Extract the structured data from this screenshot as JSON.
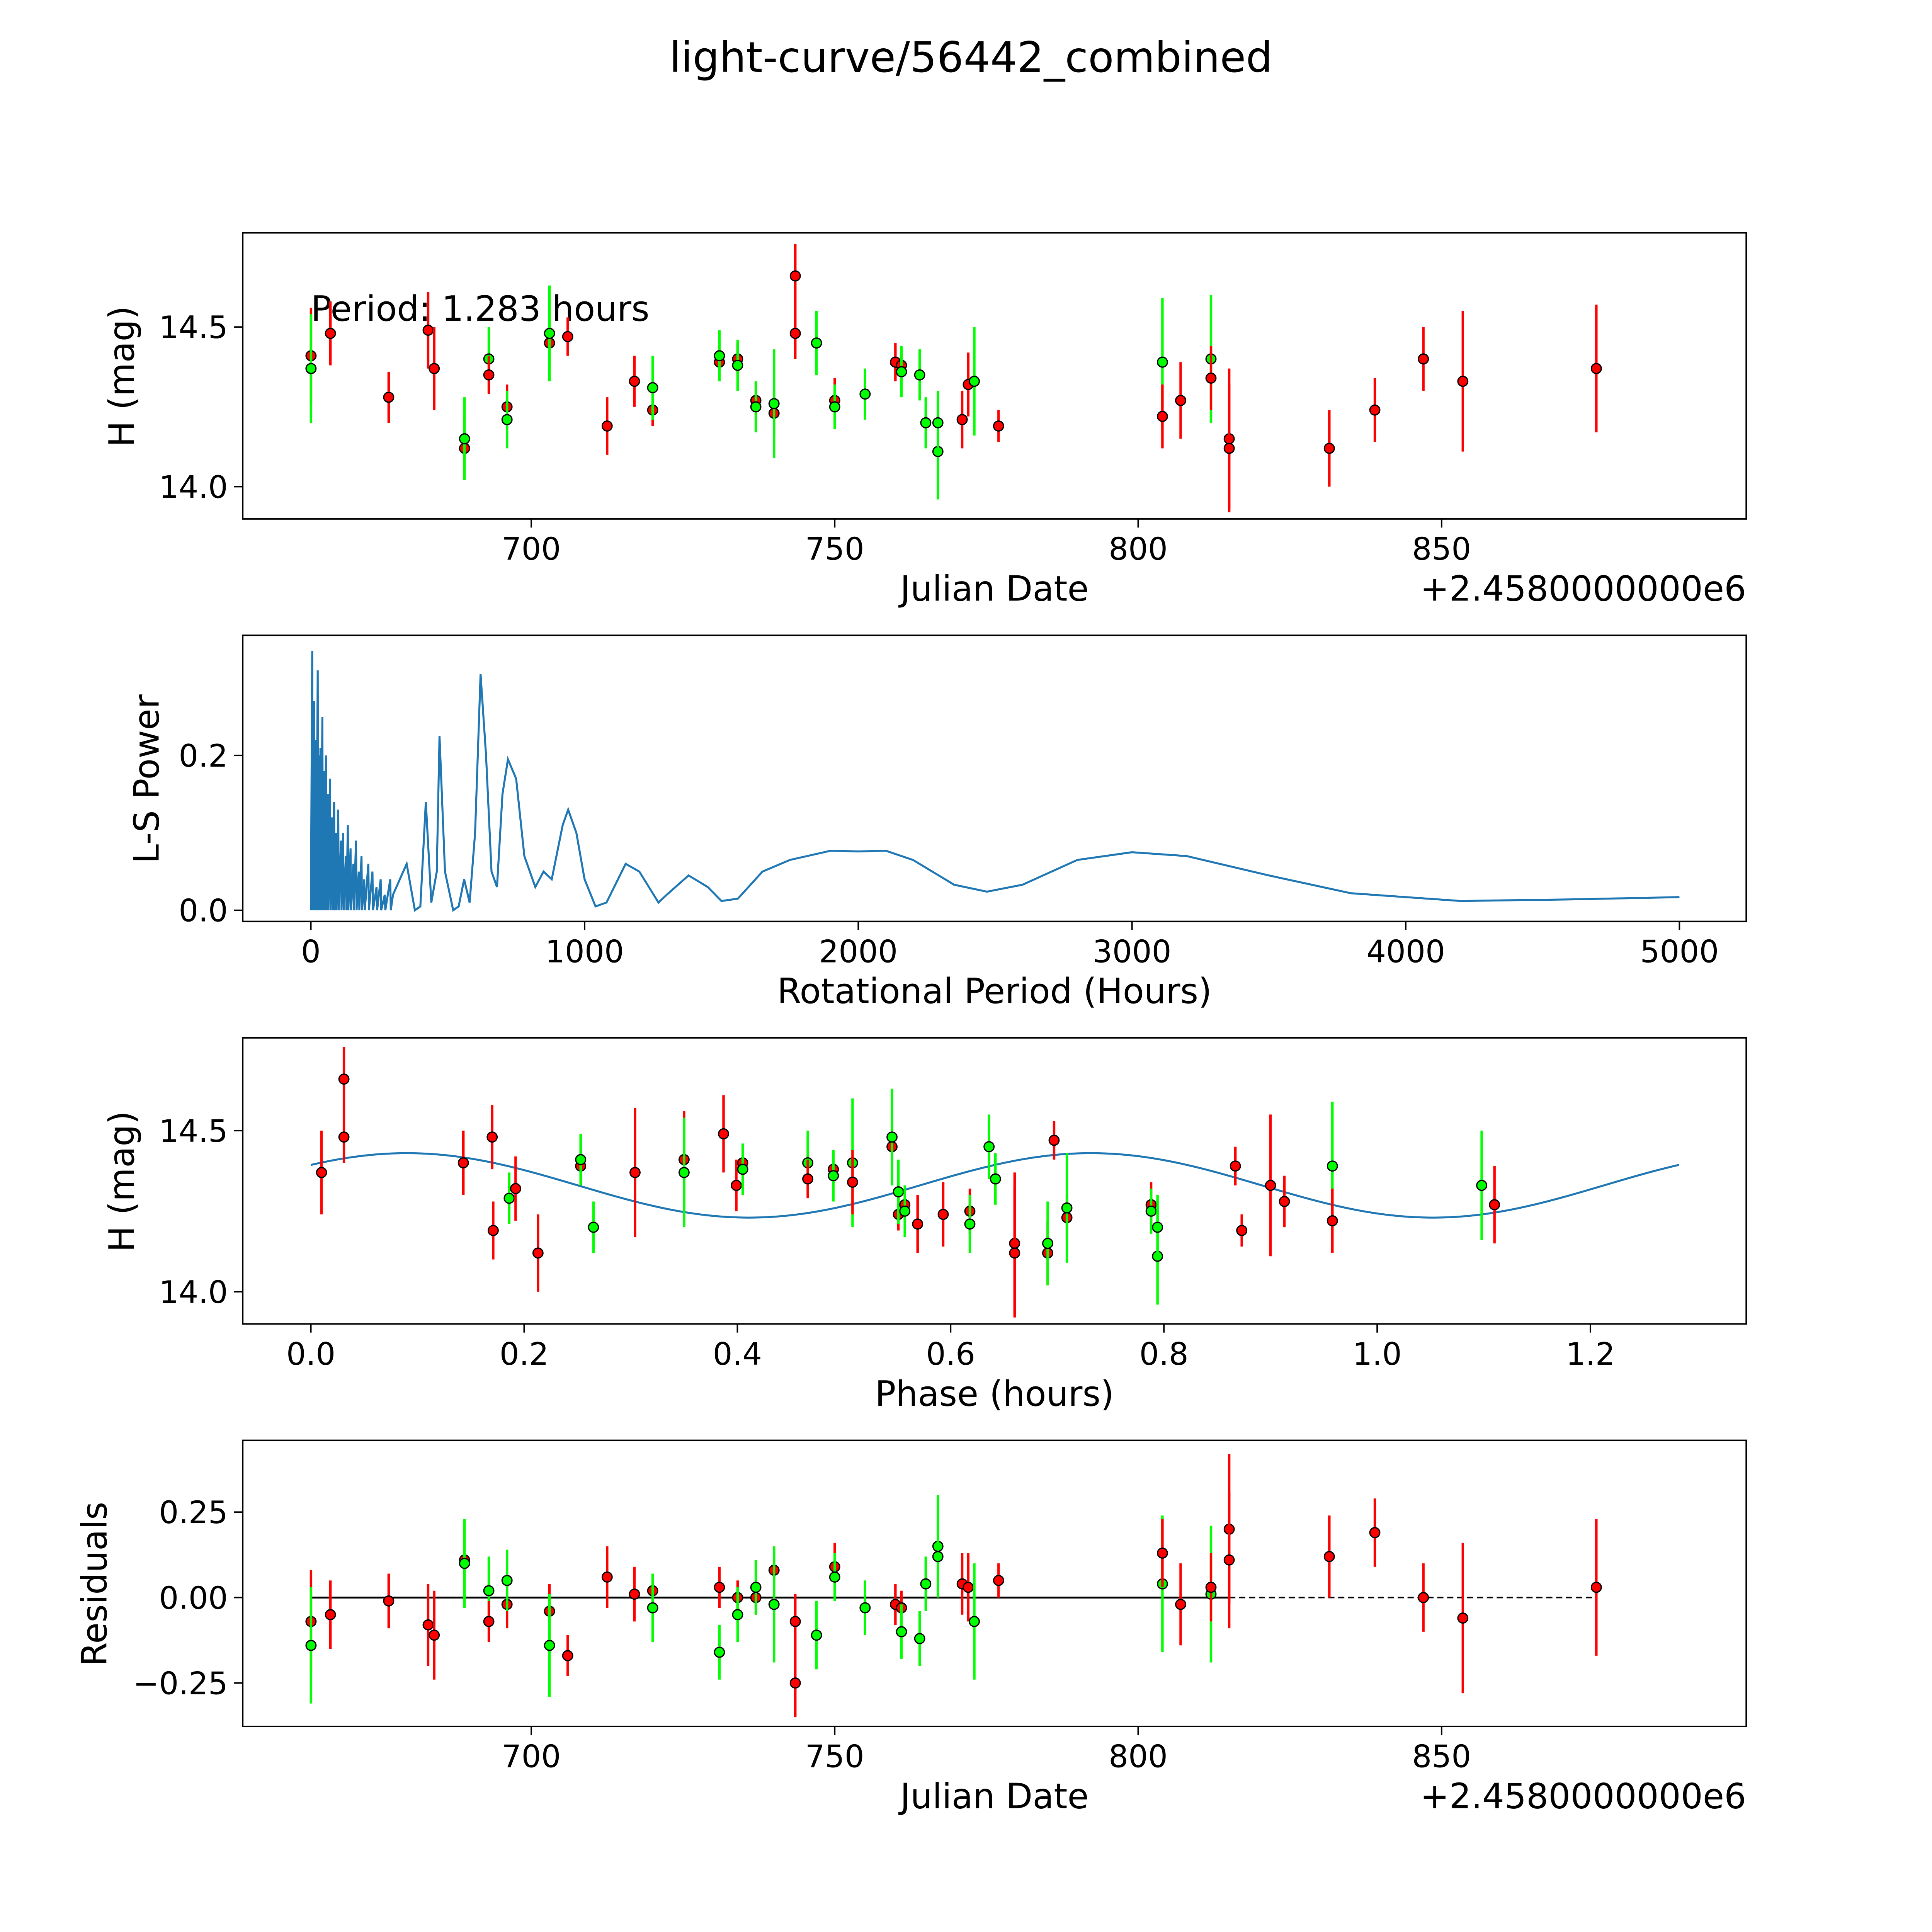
{
  "title": "light-curve/56442_combined",
  "colors": {
    "red_band": "#ff0000",
    "green_band": "#00ff00",
    "model": "#1f77b4",
    "axis": "#000000"
  },
  "chart_data": [
    {
      "type": "scatter",
      "id": "lightcurve",
      "xlabel": "Julian Date",
      "ylabel": "H (mag)",
      "offset_label": "+2.4580000000e6",
      "annotation": "Period: 1.283 hours",
      "xlim": [
        652.45,
        900.2
      ],
      "ylim": [
        13.899,
        14.795
      ],
      "xticks": [
        700,
        750,
        800,
        850
      ],
      "yticks": [
        {
          "v": 14.0,
          "label": "14.0"
        },
        {
          "v": 14.5,
          "label": "14.5"
        }
      ],
      "x": [
        663.7,
        663.7,
        666.9,
        676.5,
        683,
        684,
        689,
        689,
        693,
        693,
        696,
        696,
        703,
        703,
        706,
        712.5,
        717,
        720,
        720,
        731,
        731,
        734,
        734,
        737,
        737,
        740,
        740,
        743.5,
        743.5,
        747,
        750,
        750,
        755,
        760,
        761,
        761,
        764,
        765,
        767,
        767,
        771,
        772,
        773,
        777,
        804,
        804,
        807,
        812,
        812,
        815,
        815,
        831.5,
        839,
        847,
        853.5,
        875.5
      ],
      "y": [
        14.41,
        14.37,
        14.48,
        14.28,
        14.49,
        14.37,
        14.12,
        14.15,
        14.4,
        14.35,
        14.25,
        14.21,
        14.45,
        14.48,
        14.47,
        14.19,
        14.33,
        14.24,
        14.31,
        14.39,
        14.41,
        14.4,
        14.38,
        14.27,
        14.25,
        14.23,
        14.26,
        14.66,
        14.48,
        14.45,
        14.27,
        14.25,
        14.29,
        14.39,
        14.38,
        14.36,
        14.35,
        14.2,
        14.11,
        14.2,
        14.21,
        14.32,
        14.33,
        14.19,
        14.39,
        14.22,
        14.27,
        14.4,
        14.34,
        14.15,
        14.12,
        14.12,
        14.24,
        14.4,
        14.33,
        14.37
      ],
      "err": [
        0.15,
        0.17,
        0.1,
        0.08,
        0.12,
        0.13,
        0.1,
        0.13,
        0.1,
        0.06,
        0.07,
        0.09,
        0.08,
        0.15,
        0.06,
        0.09,
        0.08,
        0.05,
        0.1,
        0.06,
        0.08,
        0.05,
        0.08,
        0.05,
        0.08,
        0.07,
        0.17,
        0.1,
        0.08,
        0.1,
        0.07,
        0.07,
        0.08,
        0.06,
        0.05,
        0.08,
        0.08,
        0.08,
        0.15,
        0.1,
        0.09,
        0.1,
        0.17,
        0.05,
        0.2,
        0.1,
        0.12,
        0.2,
        0.1,
        0.22,
        0.2,
        0.12,
        0.1,
        0.1,
        0.22,
        0.2
      ],
      "band": [
        "r",
        "g",
        "r",
        "r",
        "r",
        "r",
        "r",
        "g",
        "g",
        "r",
        "r",
        "g",
        "r",
        "g",
        "r",
        "r",
        "r",
        "r",
        "g",
        "r",
        "g",
        "r",
        "g",
        "r",
        "g",
        "r",
        "g",
        "r",
        "r",
        "g",
        "r",
        "g",
        "g",
        "r",
        "r",
        "g",
        "g",
        "g",
        "g",
        "g",
        "r",
        "r",
        "g",
        "r",
        "g",
        "r",
        "r",
        "g",
        "r",
        "r",
        "r",
        "r",
        "r",
        "r",
        "r",
        "r"
      ]
    },
    {
      "type": "line",
      "id": "periodogram",
      "xlabel": "Rotational Period (Hours)",
      "ylabel": "L-S Power",
      "xlim": [
        -248.9,
        5244
      ],
      "ylim": [
        -0.0144,
        0.3552
      ],
      "xticks": [
        0,
        1000,
        2000,
        3000,
        4000,
        5000
      ],
      "yticks": [
        {
          "v": 0.0,
          "label": "0.0"
        },
        {
          "v": 0.2,
          "label": "0.2"
        }
      ],
      "spikes": [
        [
          5,
          0.335
        ],
        [
          8,
          0.25
        ],
        [
          12,
          0.27
        ],
        [
          18,
          0.22
        ],
        [
          25,
          0.31
        ],
        [
          30,
          0.2
        ],
        [
          35,
          0.21
        ],
        [
          42,
          0.25
        ],
        [
          48,
          0.18
        ],
        [
          55,
          0.2
        ],
        [
          62,
          0.15
        ],
        [
          70,
          0.17
        ],
        [
          78,
          0.12
        ],
        [
          85,
          0.14
        ],
        [
          92,
          0.1
        ],
        [
          100,
          0.13
        ],
        [
          110,
          0.09
        ],
        [
          118,
          0.1
        ],
        [
          128,
          0.07
        ],
        [
          135,
          0.11
        ],
        [
          145,
          0.08
        ],
        [
          155,
          0.06
        ],
        [
          165,
          0.09
        ],
        [
          175,
          0.05
        ],
        [
          185,
          0.07
        ],
        [
          195,
          0.04
        ],
        [
          210,
          0.06
        ],
        [
          225,
          0.05
        ],
        [
          240,
          0.03
        ],
        [
          255,
          0.04
        ],
        [
          270,
          0.02
        ],
        [
          290,
          0.04
        ]
      ],
      "curve": [
        [
          300,
          0.02
        ],
        [
          350,
          0.06
        ],
        [
          380,
          0.0
        ],
        [
          400,
          0.005
        ],
        [
          420,
          0.14
        ],
        [
          440,
          0.01
        ],
        [
          460,
          0.05
        ],
        [
          470,
          0.225
        ],
        [
          490,
          0.05
        ],
        [
          520,
          0.0
        ],
        [
          540,
          0.005
        ],
        [
          560,
          0.04
        ],
        [
          580,
          0.01
        ],
        [
          600,
          0.1
        ],
        [
          620,
          0.305
        ],
        [
          640,
          0.2
        ],
        [
          660,
          0.05
        ],
        [
          680,
          0.03
        ],
        [
          700,
          0.15
        ],
        [
          720,
          0.195
        ],
        [
          750,
          0.17
        ],
        [
          780,
          0.07
        ],
        [
          820,
          0.03
        ],
        [
          850,
          0.05
        ],
        [
          880,
          0.04
        ],
        [
          920,
          0.11
        ],
        [
          940,
          0.13
        ],
        [
          970,
          0.1
        ],
        [
          1000,
          0.04
        ],
        [
          1040,
          0.005
        ],
        [
          1080,
          0.01
        ],
        [
          1150,
          0.06
        ],
        [
          1200,
          0.05
        ],
        [
          1270,
          0.01
        ],
        [
          1300,
          0.02
        ],
        [
          1380,
          0.045
        ],
        [
          1450,
          0.03
        ],
        [
          1500,
          0.012
        ],
        [
          1560,
          0.015
        ],
        [
          1650,
          0.05
        ],
        [
          1750,
          0.065
        ],
        [
          1900,
          0.077
        ],
        [
          2000,
          0.076
        ],
        [
          2100,
          0.077
        ],
        [
          2200,
          0.065
        ],
        [
          2350,
          0.033
        ],
        [
          2470,
          0.024
        ],
        [
          2600,
          0.033
        ],
        [
          2800,
          0.065
        ],
        [
          3000,
          0.075
        ],
        [
          3200,
          0.07
        ],
        [
          3500,
          0.045
        ],
        [
          3800,
          0.022
        ],
        [
          4200,
          0.012
        ],
        [
          4600,
          0.014
        ],
        [
          5000,
          0.017
        ]
      ]
    },
    {
      "type": "scatter",
      "id": "phased",
      "xlabel": "Phase (hours)",
      "ylabel": "H (mag)",
      "period_hours": 1.283,
      "jd_base": 2458000,
      "model": {
        "mean": 14.33,
        "amplitude": 0.1,
        "peak_phase": 0.09,
        "harmonics": 2
      },
      "xlim": [
        -0.0639,
        1.3461
      ],
      "ylim": [
        13.9,
        14.788
      ],
      "xticks": [
        {
          "v": 0,
          "label": "0.0"
        },
        {
          "v": 0.2,
          "label": "0.2"
        },
        {
          "v": 0.4,
          "label": "0.4"
        },
        {
          "v": 0.6,
          "label": "0.6"
        },
        {
          "v": 0.8,
          "label": "0.8"
        },
        {
          "v": 1.0,
          "label": "1.0"
        },
        {
          "v": 1.2,
          "label": "1.2"
        }
      ],
      "yticks": [
        {
          "v": 14.0,
          "label": "14.0"
        },
        {
          "v": 14.5,
          "label": "14.5"
        }
      ]
    },
    {
      "type": "scatter",
      "id": "residuals",
      "xlabel": "Julian Date",
      "ylabel": "Residuals",
      "offset_label": "+2.4580000000e6",
      "xlim": [
        652.45,
        900.2
      ],
      "ylim": [
        -0.377,
        0.46
      ],
      "xticks": [
        700,
        750,
        800,
        850
      ],
      "yticks": [
        {
          "v": -0.25,
          "label": "−0.25"
        },
        {
          "v": 0,
          "label": "0.00"
        },
        {
          "v": 0.25,
          "label": "0.25"
        }
      ],
      "solid_until": 815,
      "residual": [
        -0.07,
        -0.14,
        -0.05,
        -0.01,
        -0.08,
        -0.11,
        0.11,
        0.1,
        0.02,
        -0.07,
        -0.02,
        0.05,
        -0.04,
        -0.14,
        -0.17,
        0.06,
        0.01,
        0.02,
        -0.03,
        0.03,
        -0.16,
        0.0,
        -0.05,
        0.0,
        0.03,
        0.08,
        -0.02,
        -0.25,
        -0.07,
        -0.11,
        0.09,
        0.06,
        -0.03,
        -0.02,
        -0.03,
        -0.1,
        -0.12,
        0.04,
        0.15,
        0.12,
        0.04,
        0.03,
        -0.07,
        0.05,
        0.04,
        0.13,
        -0.02,
        0.01,
        0.03,
        0.2,
        0.11,
        0.12,
        0.19,
        0.0,
        -0.06,
        0.03
      ]
    }
  ]
}
